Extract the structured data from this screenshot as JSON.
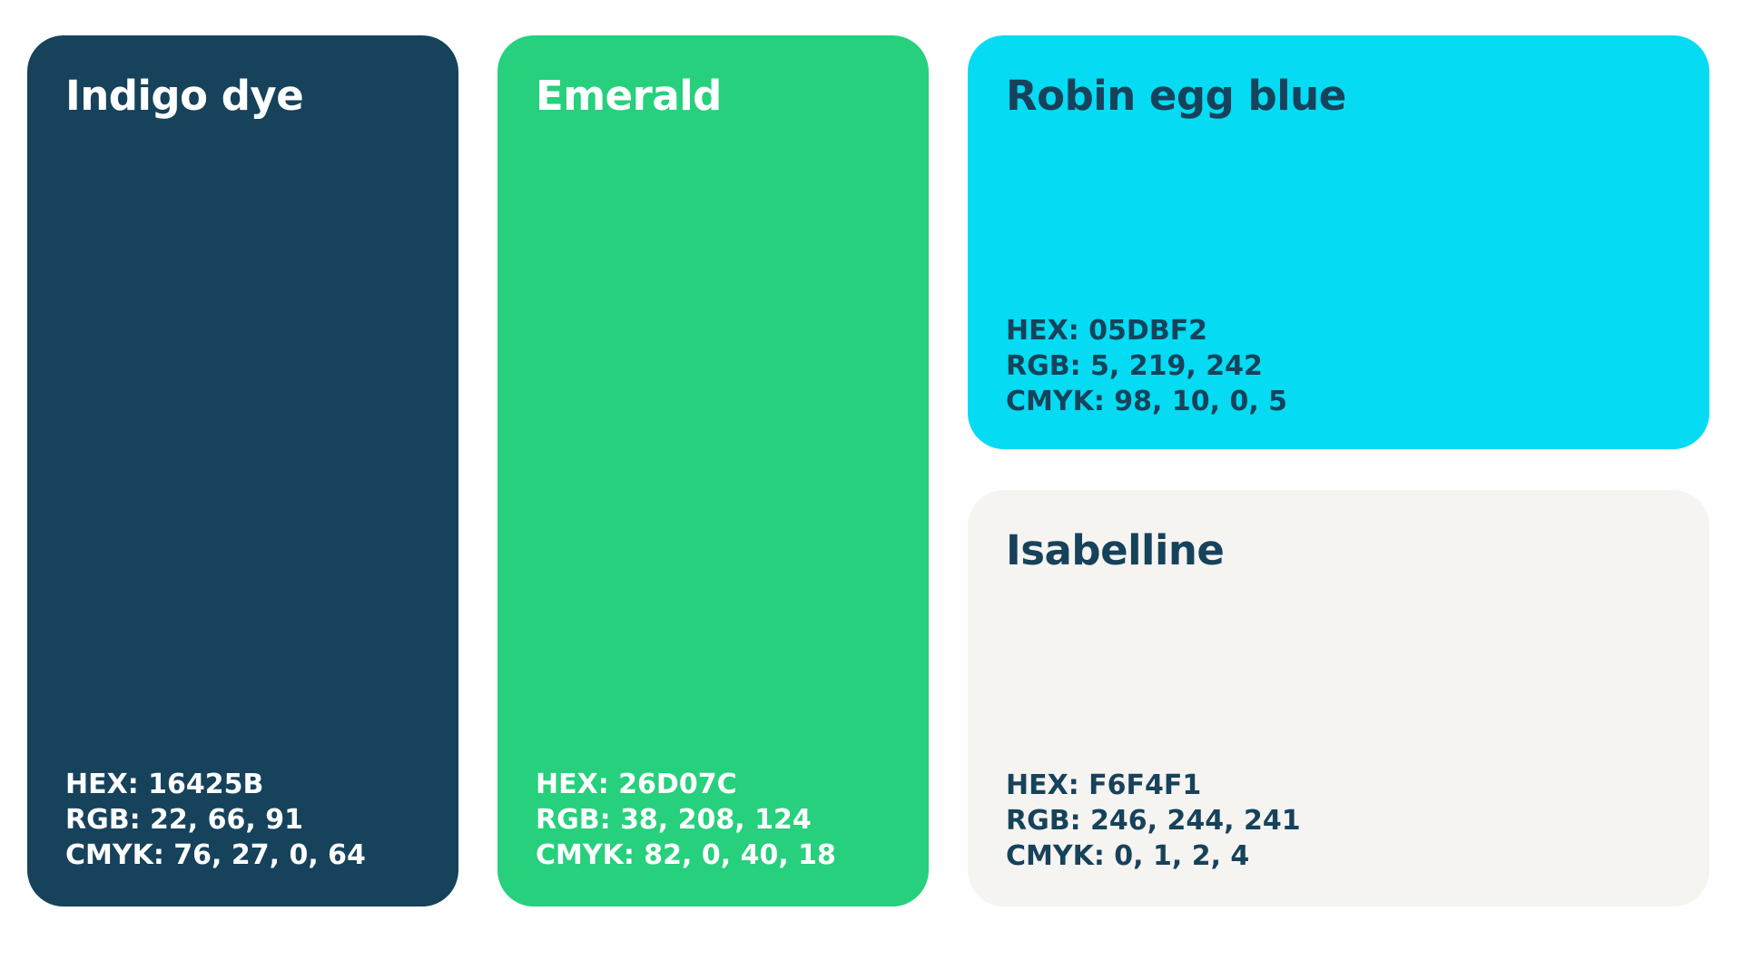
{
  "palette": [
    {
      "name": "Indigo dye",
      "hex_line": "HEX: 16425B",
      "rgb_line": "RGB: 22, 66, 91",
      "cmyk_line": "CMYK: 76, 27, 0, 64",
      "background": "#16425B",
      "text_color": "#FFFFFF"
    },
    {
      "name": "Emerald",
      "hex_line": "HEX: 26D07C",
      "rgb_line": "RGB: 38, 208, 124",
      "cmyk_line": "CMYK: 82, 0, 40, 18",
      "background": "#26D07C",
      "text_color": "#FFFFFF"
    },
    {
      "name": "Robin egg blue",
      "hex_line": "HEX: 05DBF2",
      "rgb_line": "RGB: 5, 219, 242",
      "cmyk_line": "CMYK: 98, 10, 0, 5",
      "background": "#05DBF2",
      "text_color": "#16425B"
    },
    {
      "name": "Isabelline",
      "hex_line": "HEX: F6F4F1",
      "rgb_line": "RGB: 246, 244, 241",
      "cmyk_line": "CMYK: 0, 1, 2, 4",
      "background": "#F6F4F1",
      "text_color": "#16425B"
    }
  ]
}
